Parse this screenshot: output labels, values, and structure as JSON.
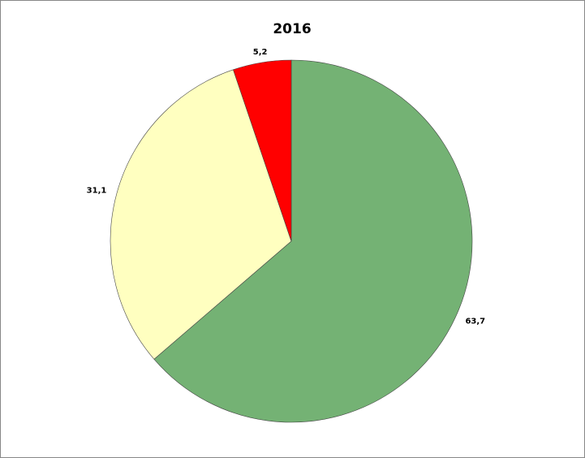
{
  "chart_data": {
    "type": "pie",
    "title": "2016",
    "values": [
      63.7,
      31.1,
      5.2
    ],
    "value_labels": [
      "63,7",
      "31,1",
      "5,2"
    ],
    "colors": [
      "#74b274",
      "#ffffc0",
      "#ff0000"
    ]
  }
}
